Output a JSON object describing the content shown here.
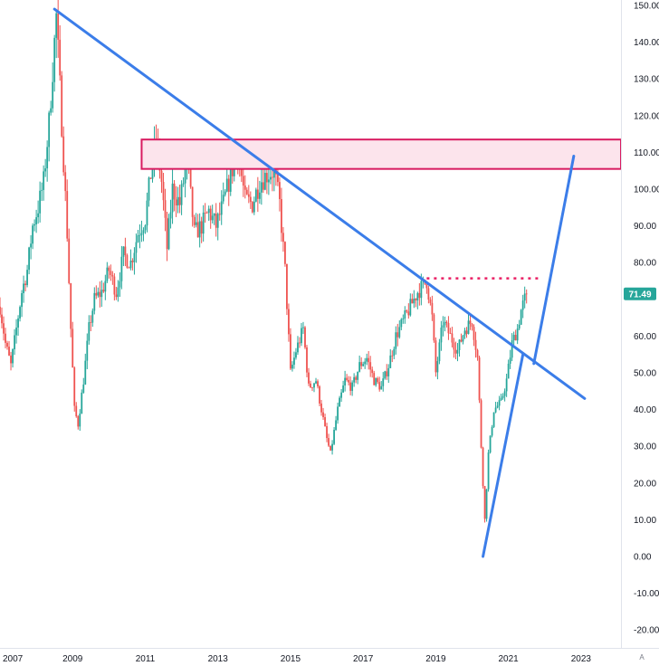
{
  "chart_data": {
    "type": "candlestick",
    "title": "",
    "xlabel": "",
    "ylabel": "",
    "ylim": [
      -25,
      150
    ],
    "xlim": [
      2007,
      2024.1
    ],
    "x_ticks": [
      "2007",
      "2009",
      "2011",
      "2013",
      "2015",
      "2017",
      "2019",
      "2021",
      "2023"
    ],
    "y_ticks": [
      "150.00",
      "140.00",
      "130.00",
      "120.00",
      "110.00",
      "100.00",
      "90.00",
      "80.00",
      "70.00",
      "60.00",
      "50.00",
      "40.00",
      "30.00",
      "20.00",
      "10.00",
      "0.00",
      "-10.00",
      "-20.00"
    ],
    "last_price": "71.49",
    "scale_mode": "A",
    "grid": false,
    "colors": {
      "up": "#26a69a",
      "down": "#ef5350",
      "trendline": "#3b7de9",
      "zone_fill": "#fce4ec",
      "zone_border": "#d81b60",
      "resistance": "#e91e63",
      "badge": "#26a69a",
      "axis_text": "#131722"
    },
    "price_path": [
      [
        2007.0,
        68
      ],
      [
        2007.15,
        58
      ],
      [
        2007.3,
        52
      ],
      [
        2007.45,
        62
      ],
      [
        2007.6,
        72
      ],
      [
        2007.75,
        78
      ],
      [
        2007.9,
        90
      ],
      [
        2008.05,
        95
      ],
      [
        2008.2,
        102
      ],
      [
        2008.35,
        118
      ],
      [
        2008.5,
        140
      ],
      [
        2008.55,
        147
      ],
      [
        2008.7,
        118
      ],
      [
        2008.85,
        88
      ],
      [
        2008.95,
        62
      ],
      [
        2009.05,
        40
      ],
      [
        2009.15,
        36
      ],
      [
        2009.3,
        48
      ],
      [
        2009.45,
        62
      ],
      [
        2009.6,
        70
      ],
      [
        2009.8,
        72
      ],
      [
        2010.0,
        78
      ],
      [
        2010.2,
        72
      ],
      [
        2010.4,
        82
      ],
      [
        2010.6,
        80
      ],
      [
        2010.8,
        88
      ],
      [
        2011.0,
        92
      ],
      [
        2011.15,
        104
      ],
      [
        2011.3,
        114
      ],
      [
        2011.45,
        102
      ],
      [
        2011.6,
        84
      ],
      [
        2011.75,
        100
      ],
      [
        2011.95,
        96
      ],
      [
        2012.15,
        108
      ],
      [
        2012.35,
        88
      ],
      [
        2012.55,
        90
      ],
      [
        2012.75,
        94
      ],
      [
        2012.95,
        90
      ],
      [
        2013.15,
        96
      ],
      [
        2013.35,
        104
      ],
      [
        2013.55,
        110
      ],
      [
        2013.75,
        97
      ],
      [
        2013.95,
        96
      ],
      [
        2014.15,
        102
      ],
      [
        2014.35,
        104
      ],
      [
        2014.55,
        105
      ],
      [
        2014.7,
        96
      ],
      [
        2014.85,
        78
      ],
      [
        2015.0,
        50
      ],
      [
        2015.15,
        56
      ],
      [
        2015.35,
        62
      ],
      [
        2015.5,
        46
      ],
      [
        2015.7,
        48
      ],
      [
        2015.85,
        40
      ],
      [
        2016.0,
        32
      ],
      [
        2016.1,
        28
      ],
      [
        2016.3,
        40
      ],
      [
        2016.5,
        48
      ],
      [
        2016.7,
        46
      ],
      [
        2016.9,
        52
      ],
      [
        2017.1,
        54
      ],
      [
        2017.3,
        48
      ],
      [
        2017.5,
        46
      ],
      [
        2017.7,
        52
      ],
      [
        2017.9,
        60
      ],
      [
        2018.1,
        64
      ],
      [
        2018.3,
        68
      ],
      [
        2018.5,
        72
      ],
      [
        2018.75,
        75
      ],
      [
        2018.9,
        65
      ],
      [
        2019.0,
        50
      ],
      [
        2019.2,
        64
      ],
      [
        2019.4,
        60
      ],
      [
        2019.6,
        56
      ],
      [
        2019.8,
        62
      ],
      [
        2020.0,
        64
      ],
      [
        2020.15,
        54
      ],
      [
        2020.25,
        30
      ],
      [
        2020.35,
        10
      ],
      [
        2020.45,
        28
      ],
      [
        2020.6,
        40
      ],
      [
        2020.8,
        42
      ],
      [
        2020.95,
        48
      ],
      [
        2021.1,
        58
      ],
      [
        2021.25,
        62
      ],
      [
        2021.35,
        67
      ],
      [
        2021.5,
        71.49
      ]
    ],
    "annotations": [
      {
        "kind": "trendline",
        "name": "descending-resistance",
        "x1": 2008.5,
        "y1": 149,
        "x2": 2023.1,
        "y2": 43
      },
      {
        "kind": "trendline",
        "name": "ascending-support",
        "x1": 2020.3,
        "y1": 0,
        "x2": 2021.4,
        "y2": 55
      },
      {
        "kind": "trendline",
        "name": "projection",
        "x1": 2021.7,
        "y1": 52.5,
        "x2": 2022.8,
        "y2": 109
      },
      {
        "kind": "zone",
        "name": "resistance-zone",
        "x1": 2010.9,
        "x2": 2024.1,
        "y1": 105.5,
        "y2": 113.5
      },
      {
        "kind": "hline-dotted",
        "name": "resistance-level",
        "x1": 2018.75,
        "x2": 2021.9,
        "y": 75.7
      }
    ]
  }
}
